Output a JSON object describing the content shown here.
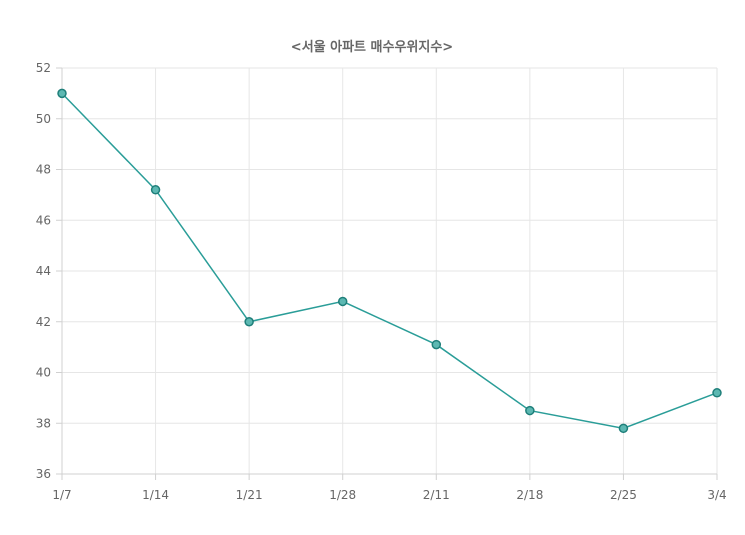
{
  "chart_data": {
    "type": "line",
    "title": "<서울 아파트 매수우위지수>",
    "categories": [
      "1/7",
      "1/14",
      "1/21",
      "1/28",
      "2/11",
      "2/18",
      "2/25",
      "3/4"
    ],
    "series": [
      {
        "values": [
          51.0,
          47.2,
          42.0,
          42.8,
          41.1,
          38.5,
          37.8,
          39.2
        ],
        "color": "#2a9d98"
      }
    ],
    "yticks": [
      36,
      38,
      40,
      42,
      44,
      46,
      48,
      50,
      52
    ],
    "ylim": [
      36,
      52
    ],
    "grid": true,
    "legend": "none"
  }
}
